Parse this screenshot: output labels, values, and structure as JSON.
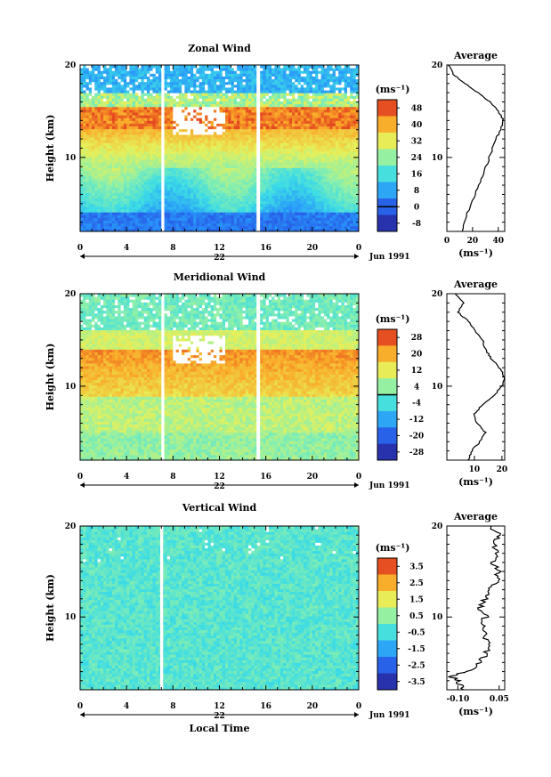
{
  "chart_data": [
    {
      "type": "heatmap",
      "title": "Zonal Wind",
      "ylabel": "Height (km)",
      "y_ticks": [
        "20",
        "10"
      ],
      "ylim": [
        2,
        20
      ],
      "x_ticks": [
        "0",
        "4",
        "8",
        "12",
        "16",
        "20",
        "0"
      ],
      "xlim": [
        0,
        24
      ],
      "date_label": "22",
      "date_right": "Jun 1991",
      "colorbar": {
        "unit": "(ms⁻¹)",
        "labels": [
          "48",
          "40",
          "32",
          "24",
          "16",
          "8",
          "0",
          "-8"
        ],
        "min": -12,
        "max": 52,
        "zero_line": 0
      },
      "gaps": [
        [
          7.0,
          7.25
        ],
        [
          15.2,
          15.5
        ]
      ],
      "average": {
        "title": "Average",
        "y_ticks": [
          "20",
          "10"
        ],
        "x_ticks": [
          "0",
          "20",
          "40"
        ],
        "xlim": [
          0,
          45
        ],
        "xlabel": "(ms⁻¹)",
        "profile": [
          [
            2,
            12
          ],
          [
            4,
            16
          ],
          [
            6,
            22
          ],
          [
            8,
            28
          ],
          [
            10,
            33
          ],
          [
            12,
            38
          ],
          [
            13,
            42
          ],
          [
            14,
            44
          ],
          [
            15,
            40
          ],
          [
            16,
            34
          ],
          [
            17,
            24
          ],
          [
            18,
            14
          ],
          [
            19,
            5
          ],
          [
            20,
            1
          ]
        ]
      }
    },
    {
      "type": "heatmap",
      "title": "Meridional Wind",
      "ylabel": "Height (km)",
      "y_ticks": [
        "20",
        "10"
      ],
      "ylim": [
        2,
        20
      ],
      "x_ticks": [
        "0",
        "4",
        "8",
        "12",
        "16",
        "20",
        "0"
      ],
      "xlim": [
        0,
        24
      ],
      "date_label": "22",
      "date_right": "Jun 1991",
      "colorbar": {
        "unit": "(ms⁻¹)",
        "labels": [
          "28",
          "20",
          "12",
          "4",
          "-4",
          "-12",
          "-20",
          "-28"
        ],
        "min": -30,
        "max": 30,
        "zero_line": 0
      },
      "gaps": [
        [
          7.0,
          7.25
        ],
        [
          15.2,
          15.5
        ]
      ],
      "average": {
        "title": "Average",
        "y_ticks": [
          "20",
          "10"
        ],
        "x_ticks": [
          "10",
          "20"
        ],
        "xlim": [
          0,
          21
        ],
        "xlabel": "(ms⁻¹)",
        "profile": [
          [
            2,
            8
          ],
          [
            3,
            9
          ],
          [
            4,
            12
          ],
          [
            5,
            14
          ],
          [
            6,
            11
          ],
          [
            7,
            10
          ],
          [
            8,
            13
          ],
          [
            9,
            17
          ],
          [
            10,
            20
          ],
          [
            11,
            21
          ],
          [
            12,
            19
          ],
          [
            13,
            16
          ],
          [
            14,
            14
          ],
          [
            15,
            13
          ],
          [
            16,
            10
          ],
          [
            17,
            8
          ],
          [
            18,
            4
          ],
          [
            19,
            6
          ],
          [
            20,
            3
          ]
        ]
      }
    },
    {
      "type": "heatmap",
      "title": "Vertical Wind",
      "ylabel": "Height (km)",
      "y_ticks": [
        "20",
        "10"
      ],
      "ylim": [
        2,
        20
      ],
      "x_ticks": [
        "0",
        "4",
        "8",
        "12",
        "16",
        "20",
        "0"
      ],
      "xlim": [
        0,
        24
      ],
      "date_label": "22",
      "date_right": "Jun 1991",
      "xlabel": "Local Time",
      "colorbar": {
        "unit": "(ms⁻¹)",
        "labels": [
          "3.5",
          "2.5",
          "1.5",
          "0.5",
          "-0.5",
          "-1.5",
          "-2.5",
          "-3.5"
        ],
        "min": -4,
        "max": 4,
        "zero_line": null
      },
      "gaps": [
        [
          6.9,
          7.15
        ]
      ],
      "average": {
        "title": "Average",
        "y_ticks": [
          "20",
          "10"
        ],
        "x_ticks": [
          "-0.10",
          "0.05"
        ],
        "x_tick_values": [
          -0.1,
          0.05
        ],
        "xlim": [
          -0.14,
          0.07
        ],
        "xlabel": "(ms⁻¹)",
        "profile": [
          [
            2,
            -0.08
          ],
          [
            3,
            -0.1
          ],
          [
            3.5,
            -0.13
          ],
          [
            4,
            -0.06
          ],
          [
            5,
            -0.02
          ],
          [
            6,
            0.0
          ],
          [
            7,
            0.01
          ],
          [
            8,
            0.0
          ],
          [
            9,
            -0.01
          ],
          [
            10,
            0.0
          ],
          [
            11,
            -0.02
          ],
          [
            12,
            0.0
          ],
          [
            13,
            0.02
          ],
          [
            14,
            0.04
          ],
          [
            15,
            0.05
          ],
          [
            16,
            0.02
          ],
          [
            17,
            0.04
          ],
          [
            18,
            0.03
          ],
          [
            19,
            0.05
          ],
          [
            20,
            0.02
          ]
        ]
      }
    }
  ]
}
